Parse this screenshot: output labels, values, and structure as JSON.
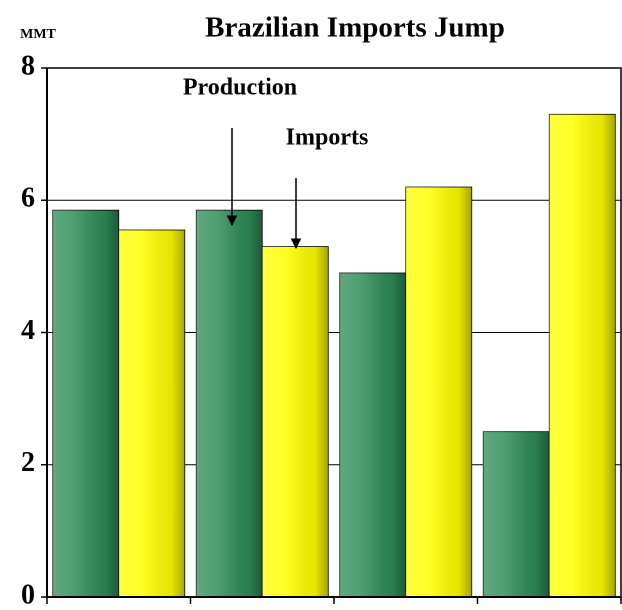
{
  "chart_data": {
    "type": "bar",
    "title": "Brazilian Imports Jump",
    "y_label": "MMT",
    "categories": [
      null,
      null,
      null,
      null
    ],
    "series": [
      {
        "name": "Production",
        "color": "#2e8b57",
        "values": [
          5.85,
          5.85,
          4.9,
          2.5
        ]
      },
      {
        "name": "Imports",
        "color": "#ffff00",
        "values": [
          5.55,
          5.3,
          6.2,
          7.3
        ]
      }
    ],
    "ylim": [
      0,
      8
    ],
    "yticks": [
      0,
      2,
      4,
      6,
      8
    ],
    "grid": true
  }
}
